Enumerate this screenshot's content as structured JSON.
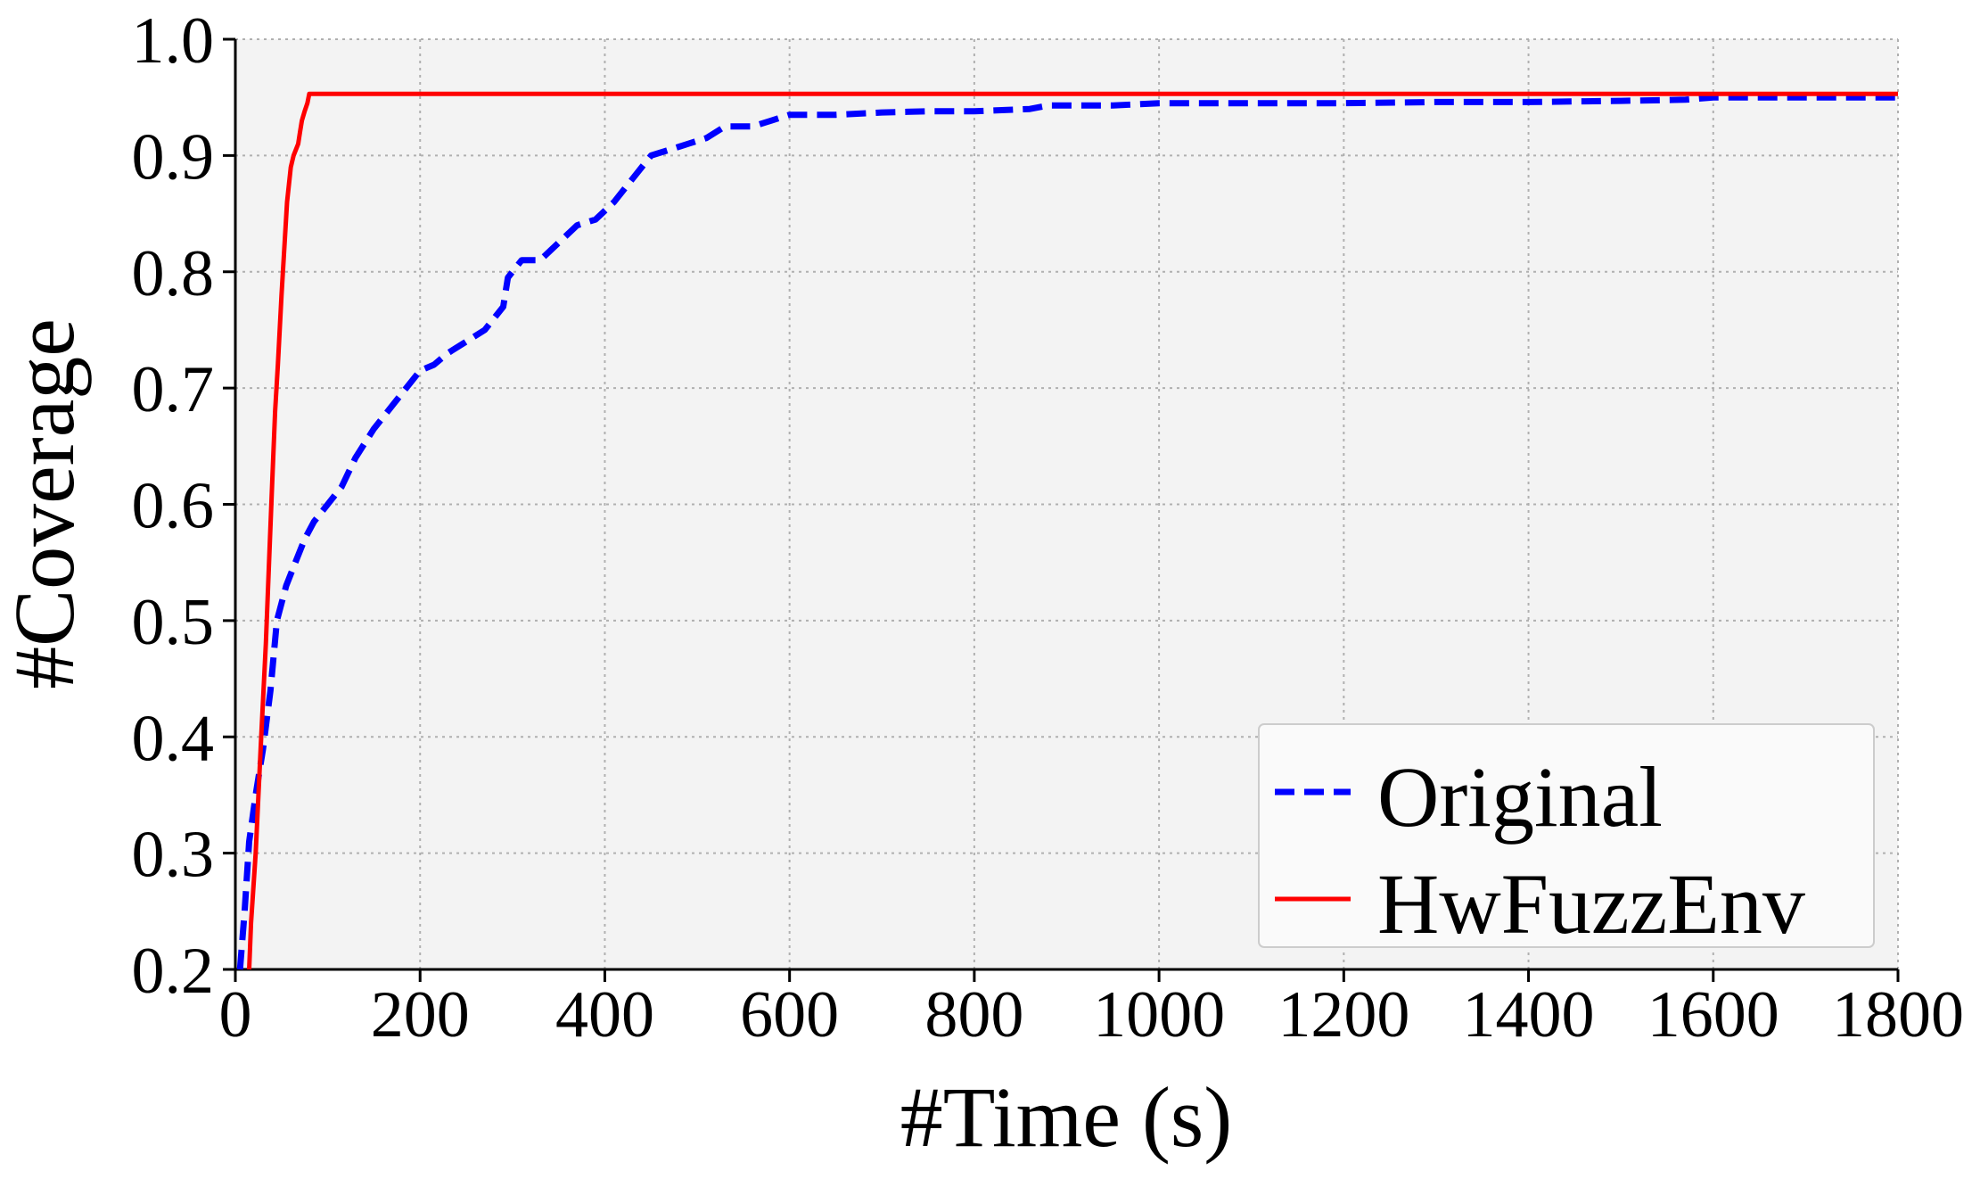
{
  "chart_data": {
    "type": "line",
    "title": "",
    "xlabel": "#Time (s)",
    "ylabel": "#Coverage",
    "xlim": [
      0,
      1800
    ],
    "ylim": [
      0.2,
      1.0
    ],
    "xticks": [
      0,
      200,
      400,
      600,
      800,
      1000,
      1200,
      1400,
      1600,
      1800
    ],
    "yticks": [
      "0.2",
      "0.3",
      "0.4",
      "0.5",
      "0.6",
      "0.7",
      "0.8",
      "0.9",
      "1.0"
    ],
    "grid": true,
    "legend_position": "bottom-right",
    "series": [
      {
        "name": "Original",
        "color": "#0000ff",
        "style": "dashed",
        "points": [
          [
            5,
            0.2
          ],
          [
            10,
            0.25
          ],
          [
            15,
            0.31
          ],
          [
            22,
            0.35
          ],
          [
            30,
            0.39
          ],
          [
            38,
            0.44
          ],
          [
            45,
            0.5
          ],
          [
            55,
            0.53
          ],
          [
            65,
            0.55
          ],
          [
            75,
            0.57
          ],
          [
            85,
            0.585
          ],
          [
            100,
            0.6
          ],
          [
            115,
            0.615
          ],
          [
            130,
            0.64
          ],
          [
            150,
            0.665
          ],
          [
            170,
            0.685
          ],
          [
            185,
            0.7
          ],
          [
            200,
            0.715
          ],
          [
            215,
            0.72
          ],
          [
            230,
            0.73
          ],
          [
            250,
            0.74
          ],
          [
            270,
            0.75
          ],
          [
            290,
            0.77
          ],
          [
            295,
            0.795
          ],
          [
            310,
            0.81
          ],
          [
            330,
            0.81
          ],
          [
            350,
            0.825
          ],
          [
            370,
            0.84
          ],
          [
            390,
            0.845
          ],
          [
            410,
            0.86
          ],
          [
            425,
            0.875
          ],
          [
            440,
            0.89
          ],
          [
            450,
            0.9
          ],
          [
            470,
            0.905
          ],
          [
            490,
            0.91
          ],
          [
            510,
            0.915
          ],
          [
            530,
            0.925
          ],
          [
            560,
            0.925
          ],
          [
            580,
            0.93
          ],
          [
            600,
            0.935
          ],
          [
            650,
            0.935
          ],
          [
            700,
            0.937
          ],
          [
            750,
            0.938
          ],
          [
            800,
            0.938
          ],
          [
            860,
            0.94
          ],
          [
            880,
            0.943
          ],
          [
            950,
            0.943
          ],
          [
            1000,
            0.945
          ],
          [
            1050,
            0.945
          ],
          [
            1100,
            0.945
          ],
          [
            1200,
            0.945
          ],
          [
            1300,
            0.946
          ],
          [
            1400,
            0.946
          ],
          [
            1500,
            0.947
          ],
          [
            1570,
            0.948
          ],
          [
            1600,
            0.95
          ],
          [
            1700,
            0.95
          ],
          [
            1800,
            0.95
          ]
        ]
      },
      {
        "name": "HwFuzzEnv",
        "color": "#ff0000",
        "style": "solid",
        "points": [
          [
            15,
            0.2
          ],
          [
            17,
            0.24
          ],
          [
            22,
            0.3
          ],
          [
            28,
            0.4
          ],
          [
            33,
            0.48
          ],
          [
            37,
            0.56
          ],
          [
            40,
            0.62
          ],
          [
            43,
            0.68
          ],
          [
            46,
            0.72
          ],
          [
            50,
            0.78
          ],
          [
            53,
            0.82
          ],
          [
            56,
            0.86
          ],
          [
            60,
            0.89
          ],
          [
            63,
            0.9
          ],
          [
            68,
            0.91
          ],
          [
            70,
            0.92
          ],
          [
            72,
            0.93
          ],
          [
            75,
            0.938
          ],
          [
            78,
            0.945
          ],
          [
            80,
            0.953
          ],
          [
            100,
            0.953
          ],
          [
            400,
            0.953
          ],
          [
            800,
            0.953
          ],
          [
            1200,
            0.953
          ],
          [
            1600,
            0.953
          ],
          [
            1800,
            0.953
          ]
        ]
      }
    ]
  }
}
